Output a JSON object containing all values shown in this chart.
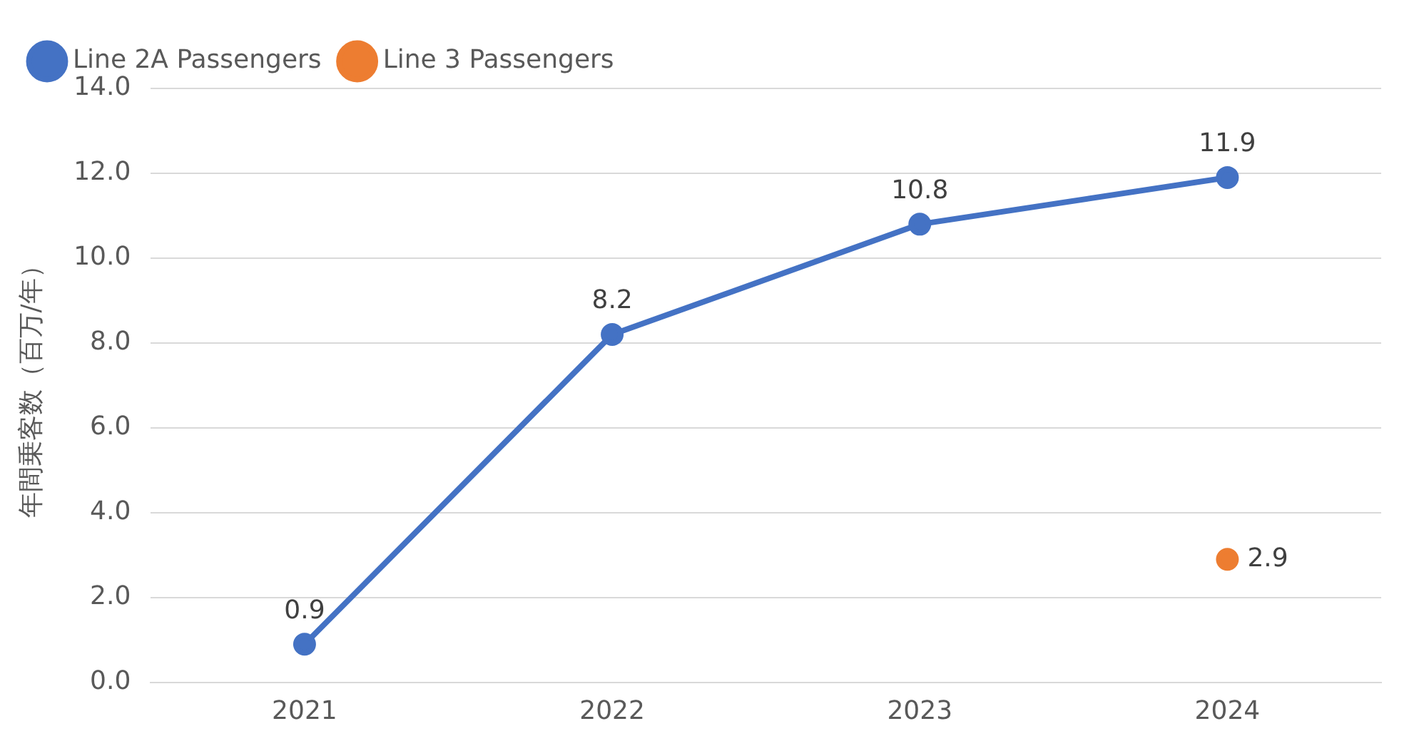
{
  "chart_data": {
    "type": "line",
    "ylabel": "年間乗客数（百万/年）",
    "categories": [
      "2021",
      "2022",
      "2023",
      "2024"
    ],
    "series": [
      {
        "name": "Line 2A Passengers",
        "color": "#4472c4",
        "values": [
          0.9,
          8.2,
          10.8,
          11.9
        ]
      },
      {
        "name": "Line 3 Passengers",
        "color": "#ed7d31",
        "values": [
          null,
          null,
          null,
          2.9
        ]
      }
    ],
    "ylim": [
      0,
      14
    ],
    "yticks": [
      {
        "value": 0,
        "label": "0.0"
      },
      {
        "value": 2,
        "label": "2.0"
      },
      {
        "value": 4,
        "label": "4.0"
      },
      {
        "value": 6,
        "label": "6.0"
      },
      {
        "value": 8,
        "label": "8.0"
      },
      {
        "value": 10,
        "label": "10.0"
      },
      {
        "value": 12,
        "label": "12.0"
      },
      {
        "value": 14,
        "label": "14.0"
      }
    ],
    "grid": "y",
    "legend": "top left",
    "marker": "circle",
    "line_style": "solid",
    "data_labels": true
  }
}
